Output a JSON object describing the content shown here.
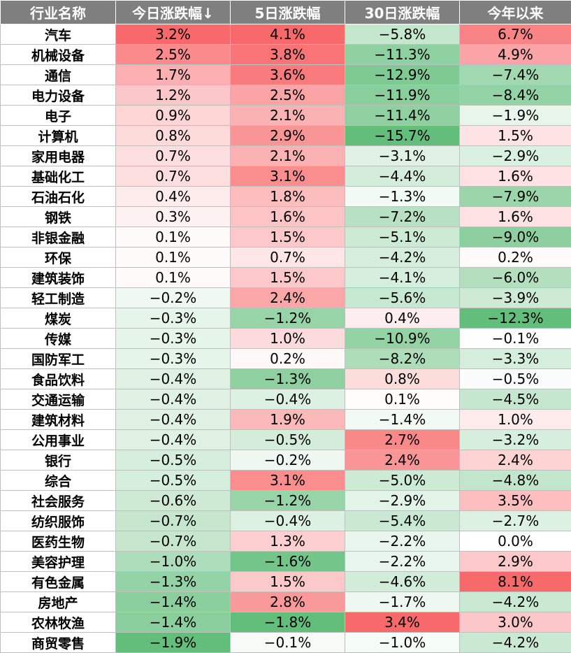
{
  "headers": [
    "行业名称",
    "今日涨跌幅↓",
    "5日涨跌幅",
    "30日涨跌幅",
    "今年以来"
  ],
  "colors": {
    "header_bg": "#7f7f7f",
    "header_text": "#ffffff",
    "positive": "#f8696b",
    "negative": "#63be7b",
    "neutral": "#ffffff"
  },
  "rows": [
    {
      "name": "汽车",
      "values": [
        "3.2%",
        "4.1%",
        "−5.8%",
        "6.7%"
      ]
    },
    {
      "name": "机械设备",
      "values": [
        "2.5%",
        "3.8%",
        "−11.3%",
        "4.9%"
      ]
    },
    {
      "name": "通信",
      "values": [
        "1.7%",
        "3.6%",
        "−12.9%",
        "−7.4%"
      ]
    },
    {
      "name": "电力设备",
      "values": [
        "1.2%",
        "2.5%",
        "−11.9%",
        "−8.4%"
      ]
    },
    {
      "name": "电子",
      "values": [
        "0.9%",
        "2.1%",
        "−11.4%",
        "−1.9%"
      ]
    },
    {
      "name": "计算机",
      "values": [
        "0.8%",
        "2.9%",
        "−15.7%",
        "1.5%"
      ]
    },
    {
      "name": "家用电器",
      "values": [
        "0.7%",
        "2.1%",
        "−3.1%",
        "−2.9%"
      ]
    },
    {
      "name": "基础化工",
      "values": [
        "0.7%",
        "3.1%",
        "−4.4%",
        "1.6%"
      ]
    },
    {
      "name": "石油石化",
      "values": [
        "0.4%",
        "1.8%",
        "−1.3%",
        "−7.9%"
      ]
    },
    {
      "name": "钢铁",
      "values": [
        "0.3%",
        "1.6%",
        "−7.2%",
        "1.6%"
      ]
    },
    {
      "name": "非银金融",
      "values": [
        "0.1%",
        "1.5%",
        "−5.1%",
        "−9.0%"
      ]
    },
    {
      "name": "环保",
      "values": [
        "0.1%",
        "0.7%",
        "−4.2%",
        "0.2%"
      ]
    },
    {
      "name": "建筑装饰",
      "values": [
        "0.1%",
        "1.5%",
        "−4.1%",
        "−6.0%"
      ]
    },
    {
      "name": "轻工制造",
      "values": [
        "−0.2%",
        "2.4%",
        "−5.6%",
        "−3.9%"
      ]
    },
    {
      "name": "煤炭",
      "values": [
        "−0.3%",
        "−1.2%",
        "0.4%",
        "−12.3%"
      ]
    },
    {
      "name": "传媒",
      "values": [
        "−0.3%",
        "1.0%",
        "−10.9%",
        "−0.1%"
      ]
    },
    {
      "name": "国防军工",
      "values": [
        "−0.3%",
        "0.2%",
        "−8.2%",
        "−3.3%"
      ]
    },
    {
      "name": "食品饮料",
      "values": [
        "−0.4%",
        "−1.3%",
        "0.8%",
        "−0.5%"
      ]
    },
    {
      "name": "交通运输",
      "values": [
        "−0.4%",
        "−0.4%",
        "0.1%",
        "−4.5%"
      ]
    },
    {
      "name": "建筑材料",
      "values": [
        "−0.4%",
        "1.9%",
        "−1.4%",
        "1.0%"
      ]
    },
    {
      "name": "公用事业",
      "values": [
        "−0.4%",
        "−0.5%",
        "2.7%",
        "−3.2%"
      ]
    },
    {
      "name": "银行",
      "values": [
        "−0.5%",
        "−0.2%",
        "2.4%",
        "2.4%"
      ]
    },
    {
      "name": "综合",
      "values": [
        "−0.5%",
        "3.1%",
        "−5.0%",
        "−4.8%"
      ]
    },
    {
      "name": "社会服务",
      "values": [
        "−0.6%",
        "−1.2%",
        "−2.9%",
        "3.5%"
      ]
    },
    {
      "name": "纺织服饰",
      "values": [
        "−0.7%",
        "−0.4%",
        "−5.4%",
        "−2.7%"
      ]
    },
    {
      "name": "医药生物",
      "values": [
        "−0.7%",
        "1.3%",
        "−2.2%",
        "0.0%"
      ]
    },
    {
      "name": "美容护理",
      "values": [
        "−1.0%",
        "−1.6%",
        "−2.2%",
        "2.9%"
      ]
    },
    {
      "name": "有色金属",
      "values": [
        "−1.3%",
        "1.5%",
        "−4.6%",
        "8.1%"
      ]
    },
    {
      "name": "房地产",
      "values": [
        "−1.4%",
        "2.8%",
        "−1.7%",
        "−4.2%"
      ]
    },
    {
      "name": "农林牧渔",
      "values": [
        "−1.4%",
        "−1.8%",
        "3.4%",
        "3.0%"
      ]
    },
    {
      "name": "商贸零售",
      "values": [
        "−1.9%",
        "−0.1%",
        "−1.0%",
        "−4.2%"
      ]
    }
  ]
}
